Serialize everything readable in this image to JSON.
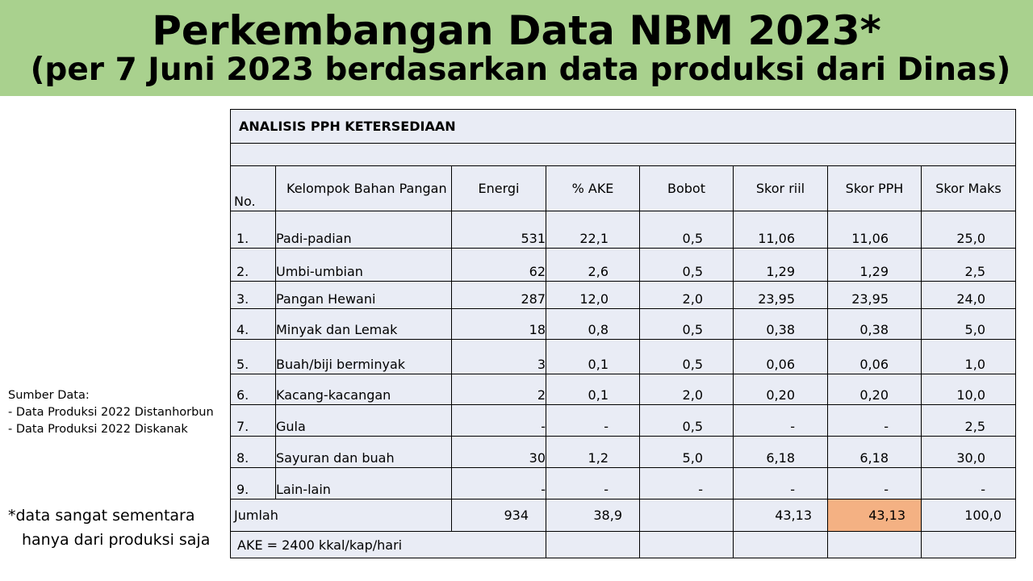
{
  "header": {
    "title": "Perkembangan Data NBM 2023*",
    "subtitle": "(per 7 Juni 2023 berdasarkan data produksi dari Dinas)"
  },
  "sidebar": {
    "source_title": "Sumber Data:",
    "source_line1": "- Data Produksi 2022 Distanhorbun",
    "source_line2": "- Data Produksi 2022 Diskanak",
    "note_line1": "*data sangat sementara",
    "note_line2": "hanya dari produksi saja"
  },
  "table": {
    "title": "ANALISIS PPH KETERSEDIAAN",
    "headers": {
      "no": "No.",
      "kelompok": "Kelompok  Bahan Pangan",
      "energi": "Energi",
      "ake": "% AKE",
      "bobot": "Bobot",
      "skor_riil": "Skor riil",
      "skor_pph": "Skor PPH",
      "skor_maks": "Skor Maks"
    },
    "rows": [
      {
        "no": "1.",
        "kelompok": "Padi-padian",
        "energi": "531",
        "ake": "22,1",
        "bobot": "0,5",
        "skor_riil": "11,06",
        "skor_pph": "11,06",
        "skor_maks": "25,0"
      },
      {
        "no": "2.",
        "kelompok": "Umbi-umbian",
        "energi": "62",
        "ake": "2,6",
        "bobot": "0,5",
        "skor_riil": "1,29",
        "skor_pph": "1,29",
        "skor_maks": "2,5"
      },
      {
        "no": "3.",
        "kelompok": "Pangan Hewani",
        "energi": "287",
        "ake": "12,0",
        "bobot": "2,0",
        "skor_riil": "23,95",
        "skor_pph": "23,95",
        "skor_maks": "24,0"
      },
      {
        "no": "4.",
        "kelompok": "Minyak dan Lemak",
        "energi": "18",
        "ake": "0,8",
        "bobot": "0,5",
        "skor_riil": "0,38",
        "skor_pph": "0,38",
        "skor_maks": "5,0"
      },
      {
        "no": "5.",
        "kelompok": "Buah/biji berminyak",
        "energi": "3",
        "ake": "0,1",
        "bobot": "0,5",
        "skor_riil": "0,06",
        "skor_pph": "0,06",
        "skor_maks": "1,0"
      },
      {
        "no": "6.",
        "kelompok": "Kacang-kacangan",
        "energi": "2",
        "ake": "0,1",
        "bobot": "2,0",
        "skor_riil": "0,20",
        "skor_pph": "0,20",
        "skor_maks": "10,0"
      },
      {
        "no": "7.",
        "kelompok": "Gula",
        "energi": "-",
        "ake": "-",
        "bobot": "0,5",
        "skor_riil": "-",
        "skor_pph": "-",
        "skor_maks": "2,5"
      },
      {
        "no": "8.",
        "kelompok": "Sayuran dan buah",
        "energi": "30",
        "ake": "1,2",
        "bobot": "5,0",
        "skor_riil": "6,18",
        "skor_pph": "6,18",
        "skor_maks": "30,0"
      },
      {
        "no": "9.",
        "kelompok": "Lain-lain",
        "energi": "-",
        "ake": "-",
        "bobot": "-",
        "skor_riil": "-",
        "skor_pph": "-",
        "skor_maks": "-"
      }
    ],
    "total": {
      "label": "Jumlah",
      "energi": "934",
      "ake": "38,9",
      "skor_riil": "43,13",
      "skor_pph": "43,13",
      "skor_maks": "100,0"
    },
    "footer": "AKE = 2400 kkal/kap/hari",
    "highlight_color": "#f4b183"
  }
}
